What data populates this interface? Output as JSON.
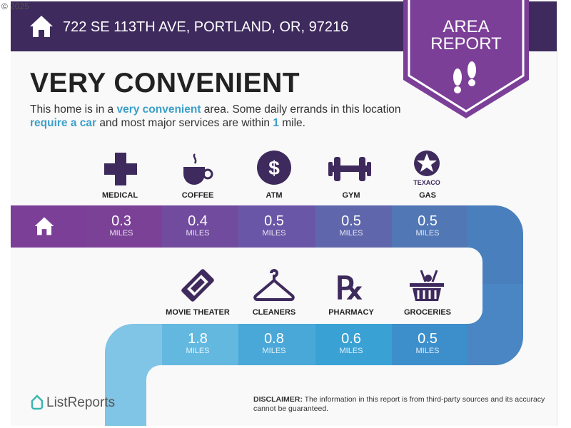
{
  "watermark": "© 2025",
  "header": {
    "address": "722 SE 113TH AVE, PORTLAND, OR, 97216",
    "badge_line1": "AREA",
    "badge_line2": "REPORT"
  },
  "headline": "VERY CONVENIENT",
  "description": {
    "p1": "This home is in a ",
    "h1": "very convenient",
    "p2": " area. Some daily errands in this location ",
    "h2": "require a car",
    "p3": " and most major services are within ",
    "h3": "1",
    "p4": " mile."
  },
  "colors": {
    "header": "#3e2a5d",
    "badge": "#7b3f98",
    "highlight": "#3b9fc9"
  },
  "amenities_row1": [
    {
      "label": "MEDICAL",
      "value": "0.3",
      "unit": "MILES",
      "icon": "medical-cross-icon"
    },
    {
      "label": "COFFEE",
      "value": "0.4",
      "unit": "MILES",
      "icon": "coffee-cup-icon"
    },
    {
      "label": "ATM",
      "value": "0.5",
      "unit": "MILES",
      "icon": "dollar-icon"
    },
    {
      "label": "GYM",
      "value": "0.5",
      "unit": "MILES",
      "icon": "dumbbell-icon"
    },
    {
      "label": "GAS",
      "value": "0.5",
      "unit": "MILES",
      "icon": "texaco-icon",
      "brand": "TEXACO"
    }
  ],
  "amenities_row2": [
    {
      "label": "MOVIE THEATER",
      "value": "1.8",
      "unit": "MILES",
      "icon": "ticket-icon"
    },
    {
      "label": "CLEANERS",
      "value": "0.8",
      "unit": "MILES",
      "icon": "hanger-icon"
    },
    {
      "label": "PHARMACY",
      "value": "0.6",
      "unit": "MILES",
      "icon": "rx-icon"
    },
    {
      "label": "GROCERIES",
      "value": "0.5",
      "unit": "MILES",
      "icon": "basket-icon"
    }
  ],
  "footer": {
    "logo": "ListReports",
    "disclaimer_label": "DISCLAIMER:",
    "disclaimer": " The information in this report is from third-party sources and its accuracy cannot be guaranteed."
  }
}
